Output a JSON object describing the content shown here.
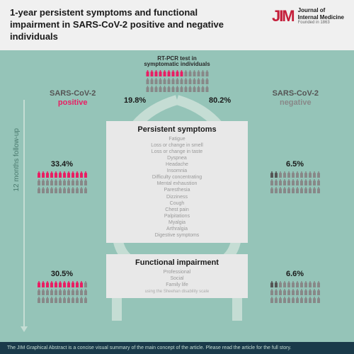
{
  "title": "1-year persistent symptoms and functional impairment in SARS-CoV-2 positive and negative individuals",
  "logo": {
    "mark": "JIM",
    "line1": "Journal of",
    "line2": "Internal Medicine",
    "founded": "Founded in 1863"
  },
  "top_label": {
    "l1": "RT-PCR test in",
    "l2": "symptomatic individuals"
  },
  "pct_left": "19.8%",
  "pct_right": "80.2%",
  "pos": {
    "l1": "SARS-CoV-2",
    "l2": "positive"
  },
  "neg": {
    "l1": "SARS-CoV-2",
    "l2": "negative"
  },
  "followup": "12 months follow-up",
  "box1": {
    "title": "Persistent symptoms",
    "items": [
      "Fatigue",
      "Loss or change in smell",
      "Loss or change in taste",
      "Dyspnea",
      "Headache",
      "Insomnia",
      "Difficulty concentrating",
      "Mental exhaustion",
      "Paresthesia",
      "Dizziness",
      "Cough",
      "Chest pain",
      "Palpitations",
      "Myalgia",
      "Arthralgia",
      "Digestive symptoms"
    ]
  },
  "box2": {
    "title": "Functional impairment",
    "items": [
      "Professional",
      "Social",
      "Family life"
    ],
    "sub": "using the Sheehan disability scale"
  },
  "sp": {
    "p1": "33.4%",
    "p2": "6.5%",
    "p3": "30.5%",
    "p4": "6.6%"
  },
  "footer": "The JIM Graphical Abstract is a concise visual summary of the main concept of the article. Please read the article for the full story.",
  "colors": {
    "bg": "#95c4b8",
    "pink": "#e91e63",
    "gray": "#888",
    "flow": "#c5ddd4",
    "boxbg": "#e8e8e8"
  }
}
